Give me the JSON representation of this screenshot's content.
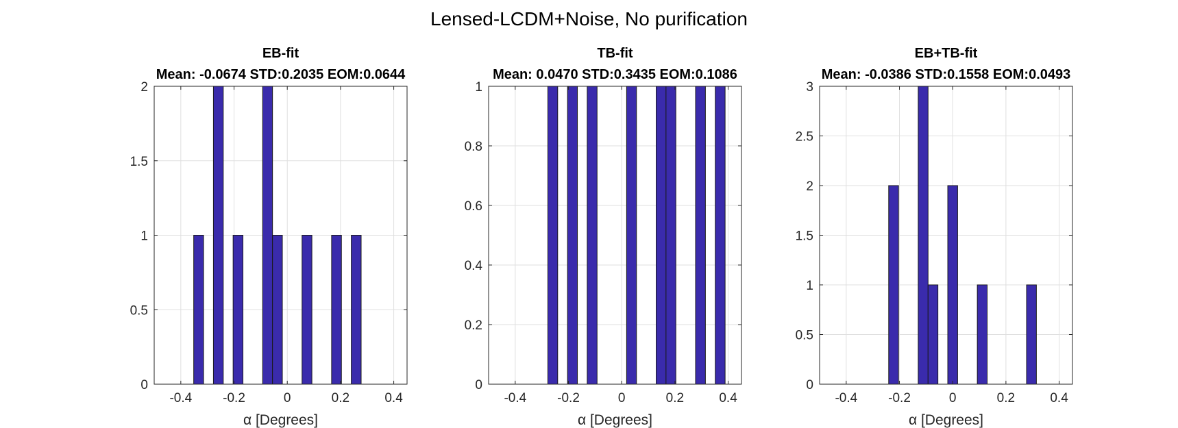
{
  "figure_title": "Lensed-LCDM+Noise, No purification",
  "chart_data": [
    {
      "type": "bar",
      "title": "EB-fit",
      "subtitle": "Mean: -0.0674 STD:0.2035 EOM:0.0644",
      "xlabel": "α [Degrees]",
      "ylabel": "",
      "xlim": [
        -0.5,
        0.45
      ],
      "ylim": [
        0,
        2
      ],
      "bin_width": 0.037,
      "xticks": [
        -0.4,
        -0.2,
        0,
        0.2,
        0.4
      ],
      "xtick_labels": [
        "-0.4",
        "-0.2",
        "0",
        "0.2",
        "0.4"
      ],
      "yticks": [
        0,
        0.5,
        1,
        1.5,
        2
      ],
      "ytick_labels": [
        "0",
        "0.5",
        "1",
        "1.5",
        "2"
      ],
      "grid": true,
      "x": [
        -0.333,
        -0.259,
        -0.185,
        -0.074,
        -0.037,
        0.074,
        0.185,
        0.259
      ],
      "values": [
        1,
        2,
        1,
        2,
        1,
        1,
        1,
        1
      ]
    },
    {
      "type": "bar",
      "title": "TB-fit",
      "subtitle": "Mean: 0.0470 STD:0.3435 EOM:0.1086",
      "xlabel": "α [Degrees]",
      "ylabel": "",
      "xlim": [
        -0.5,
        0.45
      ],
      "ylim": [
        0,
        1
      ],
      "bin_width": 0.037,
      "xticks": [
        -0.4,
        -0.2,
        0,
        0.2,
        0.4
      ],
      "xtick_labels": [
        "-0.4",
        "-0.2",
        "0",
        "0.2",
        "0.4"
      ],
      "yticks": [
        0,
        0.2,
        0.4,
        0.6,
        0.8,
        1
      ],
      "ytick_labels": [
        "0",
        "0.2",
        "0.4",
        "0.6",
        "0.8",
        "1"
      ],
      "grid": true,
      "x": [
        -0.259,
        -0.185,
        -0.111,
        0.037,
        0.148,
        0.185,
        0.296,
        0.37
      ],
      "values": [
        1,
        1,
        1,
        1,
        1,
        1,
        1,
        1
      ]
    },
    {
      "type": "bar",
      "title": "EB+TB-fit",
      "subtitle": "Mean: -0.0386 STD:0.1558 EOM:0.0493",
      "xlabel": "α [Degrees]",
      "ylabel": "",
      "xlim": [
        -0.5,
        0.45
      ],
      "ylim": [
        0,
        3
      ],
      "bin_width": 0.037,
      "xticks": [
        -0.4,
        -0.2,
        0,
        0.2,
        0.4
      ],
      "xtick_labels": [
        "-0.4",
        "-0.2",
        "0",
        "0.2",
        "0.4"
      ],
      "yticks": [
        0,
        0.5,
        1,
        1.5,
        2,
        2.5,
        3
      ],
      "ytick_labels": [
        "0",
        "0.5",
        "1",
        "1.5",
        "2",
        "2.5",
        "3"
      ],
      "grid": true,
      "x": [
        -0.222,
        -0.111,
        -0.074,
        0,
        0.111,
        0.296
      ],
      "values": [
        2,
        3,
        1,
        2,
        1,
        1
      ]
    }
  ]
}
